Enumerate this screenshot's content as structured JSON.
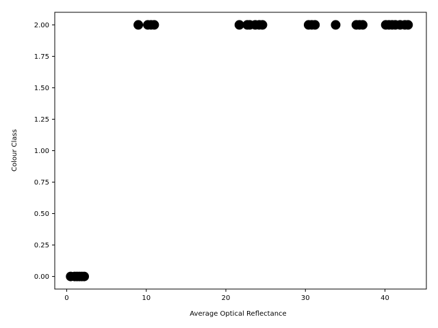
{
  "chart_data": {
    "type": "scatter",
    "title": "",
    "xlabel": "Average Optical Reflectance",
    "ylabel": "Colour Class",
    "xlim": [
      -1.5,
      45.2
    ],
    "ylim": [
      -0.1,
      2.1
    ],
    "xticks": [
      0,
      10,
      20,
      30,
      40
    ],
    "yticks": [
      0.0,
      0.25,
      0.5,
      0.75,
      1.0,
      1.25,
      1.5,
      1.75,
      2.0
    ],
    "ytick_labels": [
      "0.00",
      "0.25",
      "0.50",
      "0.75",
      "1.00",
      "1.25",
      "1.50",
      "1.75",
      "2.00"
    ],
    "grid": false,
    "legend": "none",
    "marker_color": "#000000",
    "series": [
      {
        "x": [
          0.5,
          1.0,
          1.3,
          1.6,
          1.9,
          2.2,
          9.0,
          10.2,
          10.6,
          11.0,
          21.7,
          22.7,
          23.0,
          23.7,
          24.2,
          24.6,
          30.4,
          30.8,
          31.2,
          33.8,
          36.4,
          36.8,
          37.2,
          40.1,
          40.5,
          40.9,
          41.3,
          41.9,
          42.5,
          42.9
        ],
        "y": [
          0,
          0,
          0,
          0,
          0,
          0,
          2,
          2,
          2,
          2,
          2,
          2,
          2,
          2,
          2,
          2,
          2,
          2,
          2,
          2,
          2,
          2,
          2,
          2,
          2,
          2,
          2,
          2,
          2,
          2
        ]
      }
    ]
  }
}
